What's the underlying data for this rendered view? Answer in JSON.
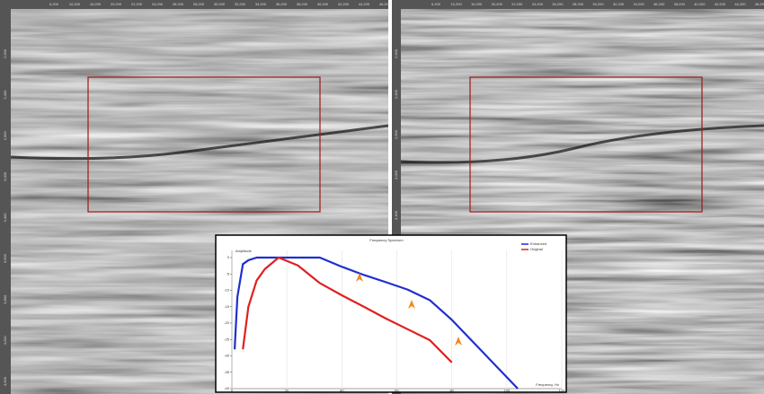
{
  "panels": [
    {
      "top_ticks": [
        "6,200",
        "10,200",
        "16,200",
        "20,200",
        "22,200",
        "24,200",
        "26,200",
        "28,200",
        "30,200",
        "32,200",
        "34,200",
        "36,200",
        "38,200",
        "40,200",
        "42,200",
        "44,200",
        "46,200"
      ],
      "side_ticks": [
        "2,000",
        "2,400",
        "2,600",
        "3,000",
        "3,400",
        "3,600",
        "3,800",
        "4,200",
        "4,600"
      ]
    },
    {
      "top_ticks": [
        "6,200",
        "10,200",
        "16,200",
        "20,200",
        "22,200",
        "24,200",
        "26,200",
        "28,200",
        "30,200",
        "32,200",
        "34,200",
        "36,200",
        "38,200",
        "40,200",
        "42,200",
        "44,200",
        "46,200"
      ],
      "side_ticks": [
        "2,000",
        "2,400",
        "2,600",
        "3,000",
        "3,400"
      ]
    }
  ],
  "chart_data": {
    "type": "line",
    "title": "Frequency Spectrum",
    "xlabel": "Frequency, Hz",
    "ylabel": "Amplitude",
    "x": [
      1,
      2,
      4,
      6,
      9,
      12,
      17,
      24,
      32,
      40,
      48,
      56,
      64,
      72,
      80,
      88,
      96,
      104
    ],
    "series": [
      {
        "name": "Enhanced",
        "color": "#1f2fd0",
        "values": [
          -28,
          -12,
          -2,
          -0.8,
          0,
          0,
          0,
          0,
          0,
          -2.8,
          -5.3,
          -7.5,
          -9.8,
          -13,
          -19,
          -26,
          -33,
          -40
        ]
      },
      {
        "name": "Original",
        "color": "#e02020",
        "values": [
          null,
          null,
          -28,
          -15,
          -7,
          -3.5,
          0,
          -2.4,
          -7.8,
          -11.5,
          -15,
          -18.6,
          -21.9,
          -25.2,
          -32,
          null,
          null,
          null
        ]
      }
    ],
    "xlim": [
      0,
      120
    ],
    "xticks": [
      0,
      20,
      40,
      60,
      80,
      100,
      120
    ],
    "ylim": [
      -40,
      0
    ],
    "yticks": [
      -40,
      -35,
      -30,
      -25,
      -20,
      -15,
      -10,
      -5,
      0
    ],
    "grid": true
  }
}
